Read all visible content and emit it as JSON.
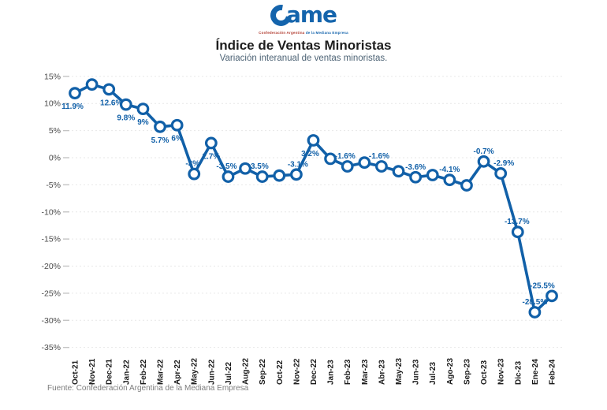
{
  "header": {
    "logo": {
      "wordmark": "ame",
      "tagline_left": "Confederación Argentina",
      "tagline_right": "de la Mediana Empresa"
    },
    "title": "Índice de Ventas Minoristas",
    "subtitle": "Variación interanual de ventas minoristas."
  },
  "footer": {
    "source": "Fuente: Confederación Argentina de la Mediana Empresa"
  },
  "chart_data": {
    "type": "line",
    "title": "Índice de Ventas Minoristas",
    "subtitle": "Variación interanual de ventas minoristas.",
    "xlabel": "",
    "ylabel": "",
    "ylim": [
      -35,
      15
    ],
    "yticks": [
      15,
      10,
      5,
      0,
      -5,
      -10,
      -15,
      -20,
      -25,
      -30,
      -35
    ],
    "ytick_suffix": "%",
    "grid": "horizontal-dashed",
    "legend": "none",
    "line_color": "#1160a8",
    "marker": "open-circle",
    "categories": [
      "Oct-21",
      "Nov-21",
      "Dec-21",
      "Jan-22",
      "Feb-22",
      "Mar-22",
      "Apr-22",
      "May-22",
      "Jun-22",
      "Jul-22",
      "Aug-22",
      "Sep-22",
      "Oct-22",
      "Nov-22",
      "Dec-22",
      "Jan-23",
      "Feb-23",
      "Mar-23",
      "Abr-23",
      "May-23",
      "Jun-23",
      "Jul-23",
      "Ago-23",
      "Sep-23",
      "Oct-23",
      "Nov-23",
      "Dic-23",
      "Ene-24",
      "Feb-24"
    ],
    "values": [
      11.9,
      13.5,
      12.6,
      9.8,
      9,
      5.7,
      6,
      -3,
      2.7,
      -3.5,
      -2,
      -3.5,
      -3.3,
      -3.1,
      3.2,
      -0.2,
      -1.6,
      -0.9,
      -1.6,
      -2.5,
      -3.6,
      -3.2,
      -4.1,
      -5.1,
      -0.7,
      -2.9,
      -13.7,
      -28.5,
      -25.5
    ],
    "point_labels": [
      "11.9%",
      null,
      "12.6%",
      "9.8%",
      "9%",
      "5.7%",
      "6%",
      "-3%",
      "2.7%",
      "-3.5%",
      null,
      "-3.5%",
      null,
      "-3.1%",
      "3.2%",
      null,
      "-1.6%",
      null,
      "-1.6%",
      null,
      "-3.6%",
      null,
      "-4.1%",
      null,
      "-0.7%",
      "-2.9%",
      "-13.7%",
      "-28.5%",
      "-25.5%"
    ],
    "label_positions": [
      "below",
      null,
      "below",
      "below",
      "below",
      "below",
      "below",
      "above",
      "below",
      "above",
      null,
      "above",
      null,
      "above",
      "below",
      null,
      "above",
      null,
      "above",
      null,
      "above",
      null,
      "above",
      null,
      "above",
      "above",
      "above",
      "above",
      "above"
    ],
    "label_dx": [
      -3,
      0,
      3,
      0,
      0,
      0,
      0,
      -2,
      0,
      -2,
      0,
      -5,
      0,
      2,
      -4,
      0,
      -3,
      0,
      -3,
      0,
      0,
      0,
      0,
      0,
      0,
      4,
      -1,
      0,
      -12
    ]
  }
}
